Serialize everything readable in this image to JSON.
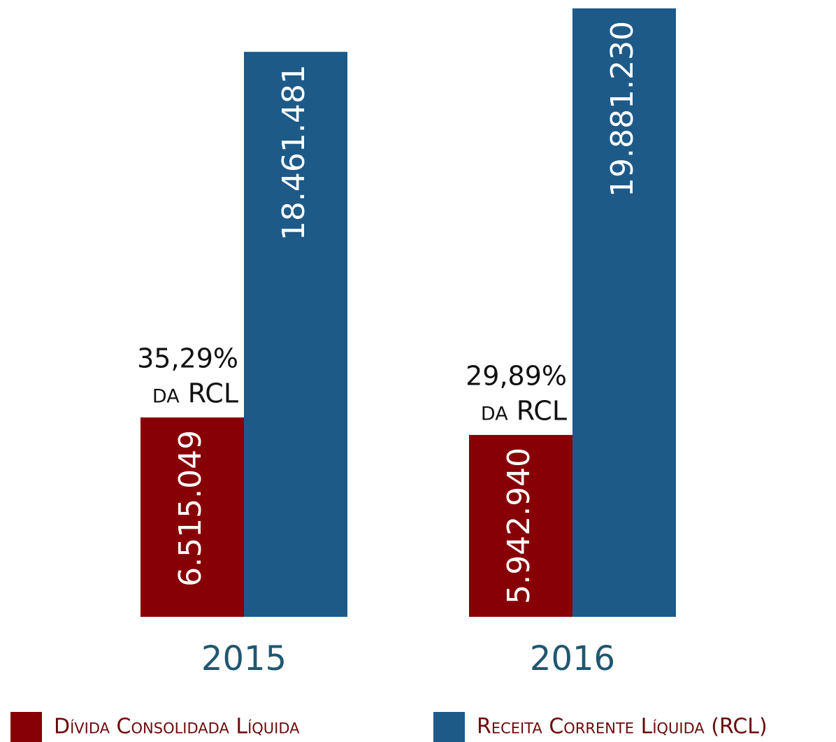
{
  "chart_data": {
    "type": "bar",
    "categories": [
      "2015",
      "2016"
    ],
    "series": [
      {
        "name": "Dívida Consolidada Líquida",
        "color": "#870006",
        "values": [
          6515049,
          5942940
        ],
        "value_labels": [
          "6.515.049",
          "5.942.940"
        ]
      },
      {
        "name": "Receita Corrente Líquida (RCL)",
        "color": "#1d5a88",
        "values": [
          18461481,
          19881230
        ],
        "value_labels": [
          "18.461.481",
          "19.881.230"
        ]
      }
    ],
    "annotations": [
      [
        "35,29%",
        "da RCL"
      ],
      [
        "29,89%",
        "da RCL"
      ]
    ],
    "legend": "bottom"
  }
}
